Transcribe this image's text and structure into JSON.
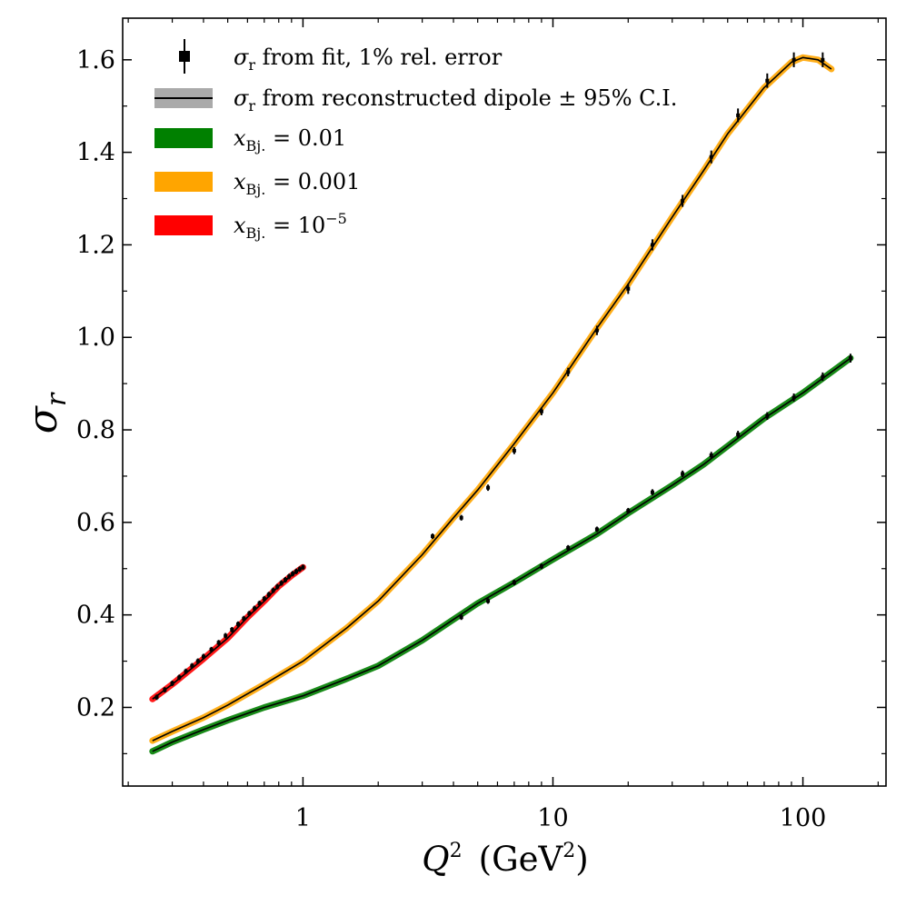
{
  "chart_data": {
    "type": "line",
    "xscale": "log",
    "xlim": [
      0.19,
      215
    ],
    "ylim": [
      0.03,
      1.69
    ],
    "xticks": [
      {
        "value": 1,
        "label": "1"
      },
      {
        "value": 10,
        "label": "10"
      },
      {
        "value": 100,
        "label": "100"
      }
    ],
    "yticks": [
      {
        "value": 0.2,
        "label": "0.2"
      },
      {
        "value": 0.4,
        "label": "0.4"
      },
      {
        "value": 0.6,
        "label": "0.6"
      },
      {
        "value": 0.8,
        "label": "0.8"
      },
      {
        "value": 1.0,
        "label": "1.0"
      },
      {
        "value": 1.2,
        "label": "1.2"
      },
      {
        "value": 1.4,
        "label": "1.4"
      },
      {
        "value": 1.6,
        "label": "1.6"
      }
    ],
    "xlabel": {
      "var": "Q",
      "sup": "2",
      "unit_open": "(GeV",
      "unit_sup": "2",
      "unit_close": ")"
    },
    "ylabel": {
      "symbol": "σ",
      "sub": "r"
    },
    "legend": {
      "placement": "top-left",
      "entries": [
        {
          "kind": "points",
          "sym": "σ",
          "sub": "r",
          "text": " from fit, 1% rel. error"
        },
        {
          "kind": "line",
          "sym": "σ",
          "sub": "r",
          "text": " from reconstructed dipole ± 95% C.I."
        },
        {
          "kind": "band",
          "color": "#008000",
          "sym": "x",
          "sub": "Bj.",
          "text": " = 0.01"
        },
        {
          "kind": "band",
          "color": "#FFA500",
          "sym": "x",
          "sub": "Bj.",
          "text": " = 0.001"
        },
        {
          "kind": "band",
          "color": "#FF0000",
          "sym": "x",
          "sub": "Bj.",
          "text": " = 10",
          "sup": "−5"
        }
      ]
    },
    "series": [
      {
        "name": "x_Bj. = 0.01",
        "color": "#008000",
        "x": [
          0.25,
          0.3,
          0.4,
          0.5,
          0.7,
          1.0,
          1.5,
          2.0,
          3.0,
          4.0,
          5.0,
          7.0,
          10,
          15,
          20,
          30,
          40,
          50,
          70,
          100,
          130,
          155
        ],
        "y": [
          0.105,
          0.125,
          0.152,
          0.172,
          0.2,
          0.225,
          0.262,
          0.29,
          0.345,
          0.39,
          0.425,
          0.47,
          0.52,
          0.575,
          0.62,
          0.68,
          0.725,
          0.765,
          0.825,
          0.88,
          0.925,
          0.955
        ],
        "points": {
          "x": [
            4.3,
            5.5,
            7.0,
            9.0,
            11.5,
            15,
            20,
            25,
            33,
            43,
            55,
            72,
            92,
            120,
            155
          ],
          "y": [
            0.395,
            0.43,
            0.47,
            0.505,
            0.545,
            0.585,
            0.625,
            0.665,
            0.705,
            0.745,
            0.79,
            0.83,
            0.87,
            0.915,
            0.955
          ]
        }
      },
      {
        "name": "x_Bj. = 0.001",
        "color": "#FFA500",
        "x": [
          0.25,
          0.3,
          0.4,
          0.5,
          0.7,
          1.0,
          1.5,
          2.0,
          3.0,
          4.0,
          5.0,
          7.0,
          10,
          15,
          20,
          30,
          40,
          50,
          70,
          90,
          100,
          115,
          130
        ],
        "y": [
          0.128,
          0.148,
          0.178,
          0.205,
          0.25,
          0.3,
          0.372,
          0.43,
          0.53,
          0.61,
          0.67,
          0.77,
          0.88,
          1.02,
          1.115,
          1.26,
          1.36,
          1.44,
          1.54,
          1.595,
          1.605,
          1.6,
          1.58
        ],
        "points": {
          "x": [
            3.3,
            4.3,
            5.5,
            7.0,
            9.0,
            11.5,
            15,
            20,
            25,
            33,
            43,
            55,
            72,
            92,
            120
          ],
          "y": [
            0.57,
            0.61,
            0.675,
            0.755,
            0.84,
            0.925,
            1.015,
            1.105,
            1.2,
            1.295,
            1.39,
            1.48,
            1.555,
            1.6,
            1.6
          ]
        }
      },
      {
        "name": "x_Bj. = 10^-5",
        "color": "#FF0000",
        "x": [
          0.25,
          0.3,
          0.4,
          0.5,
          0.6,
          0.7,
          0.8,
          0.9,
          1.0
        ],
        "y": [
          0.218,
          0.25,
          0.305,
          0.35,
          0.395,
          0.43,
          0.462,
          0.485,
          0.503
        ],
        "points": {
          "x": [
            0.26,
            0.28,
            0.3,
            0.32,
            0.34,
            0.36,
            0.38,
            0.4,
            0.43,
            0.46,
            0.49,
            0.52,
            0.55,
            0.58,
            0.61,
            0.64,
            0.67,
            0.7,
            0.73,
            0.76,
            0.79,
            0.82,
            0.85,
            0.88,
            0.91,
            0.94,
            0.97,
            1.0
          ],
          "y": [
            0.222,
            0.238,
            0.252,
            0.265,
            0.278,
            0.29,
            0.3,
            0.31,
            0.325,
            0.34,
            0.355,
            0.368,
            0.38,
            0.392,
            0.403,
            0.414,
            0.425,
            0.435,
            0.444,
            0.453,
            0.461,
            0.469,
            0.476,
            0.483,
            0.489,
            0.494,
            0.499,
            0.503
          ]
        }
      }
    ]
  }
}
